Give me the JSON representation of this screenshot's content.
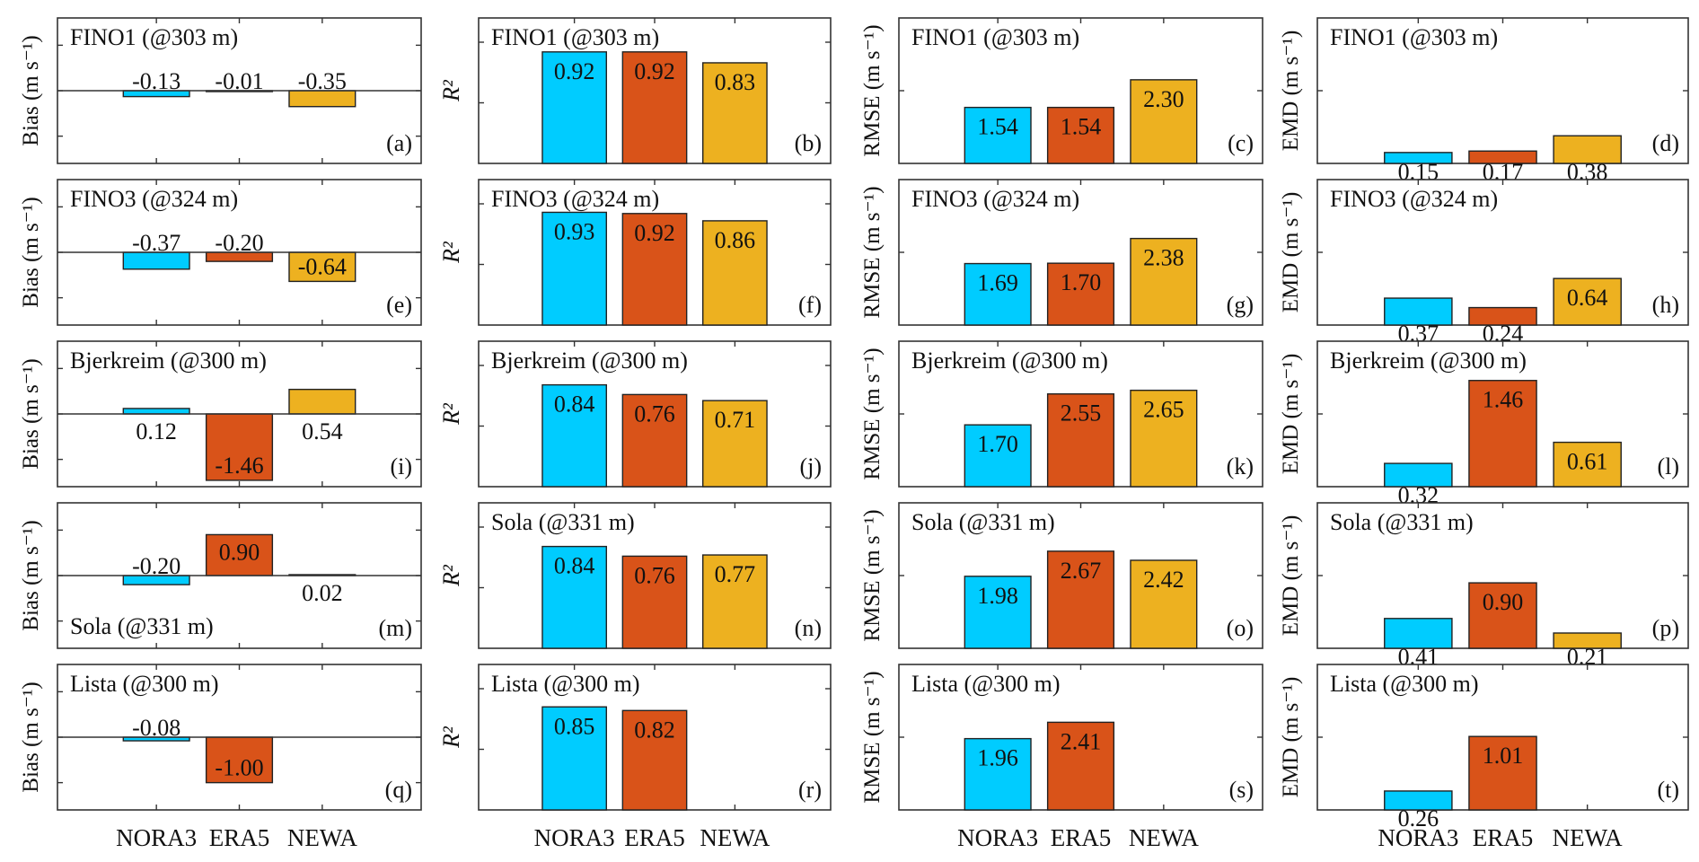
{
  "chart_data": {
    "type": "bar",
    "layout": "grid 5 rows x 4 columns",
    "categories": [
      "NORA3",
      "ERA5",
      "NEWA"
    ],
    "colors": {
      "NORA3": "#00CCFF",
      "ERA5": "#D95319",
      "NEWA": "#EDB120"
    },
    "columns": [
      {
        "metric": "Bias",
        "ylabel": "Bias (m s⁻¹)",
        "ylim": [
          -1.6,
          1.6
        ],
        "yticks": [
          -1,
          0,
          1
        ],
        "zero_line": true
      },
      {
        "metric": "R2",
        "ylabel": "R²",
        "ylim": [
          0,
          1.2
        ],
        "yticks": [
          0,
          0.5,
          1
        ],
        "zero_line": false
      },
      {
        "metric": "RMSE",
        "ylabel": "RMSE (m s⁻¹)",
        "ylim": [
          0,
          4
        ],
        "yticks": [
          0,
          2,
          4
        ],
        "zero_line": false
      },
      {
        "metric": "EMD",
        "ylabel": "EMD (m s⁻¹)",
        "ylim": [
          0,
          2
        ],
        "yticks": [
          0,
          1,
          2
        ],
        "zero_line": false
      }
    ],
    "rows": [
      {
        "site": "FINO1 (@303 m)",
        "panels": [
          {
            "letter": "(a)",
            "values": [
              -0.13,
              -0.01,
              -0.35
            ],
            "labels": [
              "-0.13",
              "-0.01",
              "-0.35"
            ]
          },
          {
            "letter": "(b)",
            "values": [
              0.92,
              0.92,
              0.83
            ],
            "labels": [
              "0.92",
              "0.92",
              "0.83"
            ]
          },
          {
            "letter": "(c)",
            "values": [
              1.54,
              1.54,
              2.3
            ],
            "labels": [
              "1.54",
              "1.54",
              "2.30"
            ]
          },
          {
            "letter": "(d)",
            "values": [
              0.15,
              0.17,
              0.38
            ],
            "labels": [
              "0.15",
              "0.17",
              "0.38"
            ]
          }
        ]
      },
      {
        "site": "FINO3 (@324 m)",
        "panels": [
          {
            "letter": "(e)",
            "values": [
              -0.37,
              -0.2,
              -0.64
            ],
            "labels": [
              "-0.37",
              "-0.20",
              "-0.64"
            ]
          },
          {
            "letter": "(f)",
            "values": [
              0.93,
              0.92,
              0.86
            ],
            "labels": [
              "0.93",
              "0.92",
              "0.86"
            ]
          },
          {
            "letter": "(g)",
            "values": [
              1.69,
              1.7,
              2.38
            ],
            "labels": [
              "1.69",
              "1.70",
              "2.38"
            ]
          },
          {
            "letter": "(h)",
            "values": [
              0.37,
              0.24,
              0.64
            ],
            "labels": [
              "0.37",
              "0.24",
              "0.64"
            ]
          }
        ]
      },
      {
        "site": "Bjerkreim (@300 m)",
        "panels": [
          {
            "letter": "(i)",
            "values": [
              0.12,
              -1.46,
              0.54
            ],
            "labels": [
              "0.12",
              "-1.46",
              "0.54"
            ]
          },
          {
            "letter": "(j)",
            "values": [
              0.84,
              0.76,
              0.71
            ],
            "labels": [
              "0.84",
              "0.76",
              "0.71"
            ]
          },
          {
            "letter": "(k)",
            "values": [
              1.7,
              2.55,
              2.65
            ],
            "labels": [
              "1.70",
              "2.55",
              "2.65"
            ]
          },
          {
            "letter": "(l)",
            "values": [
              0.32,
              1.46,
              0.61
            ],
            "labels": [
              "0.32",
              "1.46",
              "0.61"
            ]
          }
        ]
      },
      {
        "site": "Sola (@331 m)",
        "panels": [
          {
            "letter": "(m)",
            "values": [
              -0.2,
              0.9,
              0.02
            ],
            "labels": [
              "-0.20",
              "0.90",
              "0.02"
            ],
            "site_label_position": "bottom-left"
          },
          {
            "letter": "(n)",
            "values": [
              0.84,
              0.76,
              0.77
            ],
            "labels": [
              "0.84",
              "0.76",
              "0.77"
            ]
          },
          {
            "letter": "(o)",
            "values": [
              1.98,
              2.67,
              2.42
            ],
            "labels": [
              "1.98",
              "2.67",
              "2.42"
            ]
          },
          {
            "letter": "(p)",
            "values": [
              0.41,
              0.9,
              0.21
            ],
            "labels": [
              "0.41",
              "0.90",
              "0.21"
            ]
          }
        ]
      },
      {
        "site": "Lista (@300 m)",
        "panels": [
          {
            "letter": "(q)",
            "values": [
              -0.08,
              -1.0,
              null
            ],
            "labels": [
              "-0.08",
              "-1.00",
              null
            ]
          },
          {
            "letter": "(r)",
            "values": [
              0.85,
              0.82,
              null
            ],
            "labels": [
              "0.85",
              "0.82",
              null
            ]
          },
          {
            "letter": "(s)",
            "values": [
              1.96,
              2.41,
              null
            ],
            "labels": [
              "1.96",
              "2.41",
              null
            ]
          },
          {
            "letter": "(t)",
            "values": [
              0.26,
              1.01,
              null
            ],
            "labels": [
              "0.26",
              "1.01",
              null
            ]
          }
        ]
      }
    ],
    "xtick_labels": [
      "NORA3",
      "ERA5",
      "NEWA"
    ],
    "grid": false,
    "legend": "none"
  }
}
